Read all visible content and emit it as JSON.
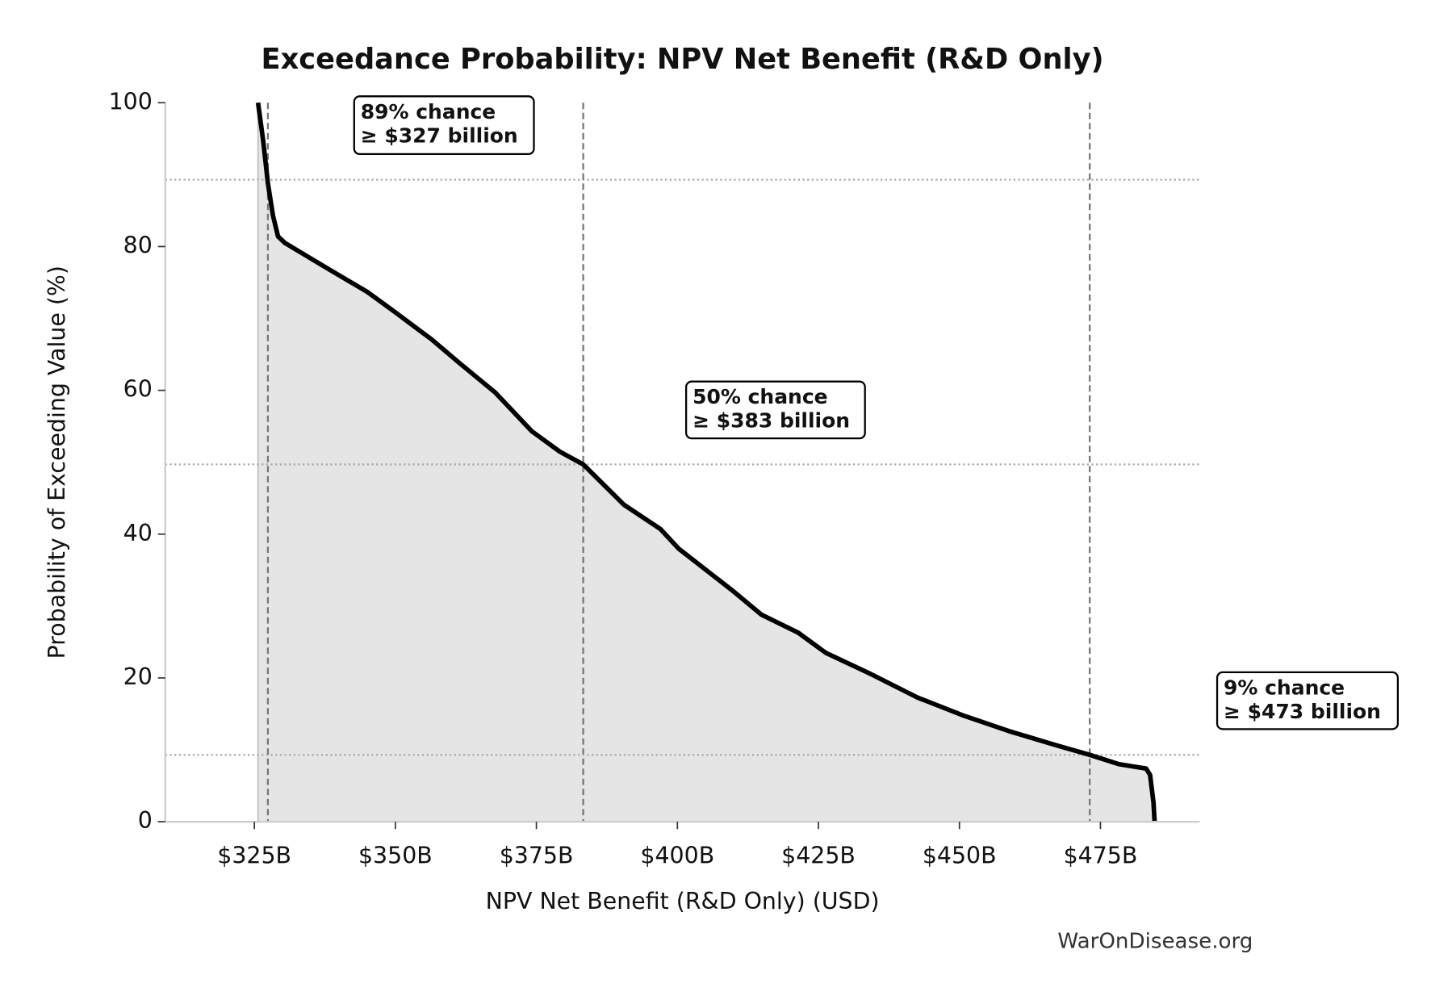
{
  "chart_data": {
    "type": "line",
    "title": "Exceedance Probability: NPV Net Benefit (R&D Only)",
    "xlabel": "NPV Net Benefit (R&D Only) (USD)",
    "ylabel": "Probability of Exceeding Value (%)",
    "source": "WarOnDisease.org",
    "color": "#000000",
    "fill_color": "#e5e5e5",
    "x": [
      325.65,
      326.6,
      327.4,
      328.3,
      329.2,
      330.4,
      333.6,
      338.5,
      345,
      349.9,
      356.4,
      361.2,
      367.7,
      374.2,
      379.1,
      383.3,
      390.5,
      397,
      400.2,
      410,
      414.9,
      421.4,
      426.3,
      434.4,
      442.5,
      450.6,
      458.8,
      466.9,
      473.1,
      478.3,
      483.1,
      483.8,
      484.4,
      484.6
    ],
    "values": [
      100,
      94.5,
      88.8,
      84.3,
      81.4,
      80.5,
      79,
      76.7,
      73.7,
      70.9,
      67.1,
      63.9,
      59.7,
      54.3,
      51.5,
      49.7,
      44.1,
      40.7,
      38,
      32,
      28.8,
      26.3,
      23.5,
      20.5,
      17.3,
      14.8,
      12.6,
      10.7,
      9.3,
      8.0,
      7.4,
      6.5,
      2.7,
      0
    ],
    "xlim": [
      309.2,
      492.6
    ],
    "ylim": [
      0,
      100
    ],
    "xticks": [
      {
        "value": 325,
        "label": "$325B"
      },
      {
        "value": 350,
        "label": "$350B"
      },
      {
        "value": 375,
        "label": "$375B"
      },
      {
        "value": 400,
        "label": "$400B"
      },
      {
        "value": 425,
        "label": "$425B"
      },
      {
        "value": 450,
        "label": "$450B"
      },
      {
        "value": 475,
        "label": "$475B"
      }
    ],
    "yticks": [
      0,
      20,
      40,
      60,
      80,
      100
    ],
    "annotations": [
      {
        "x": 327.4,
        "y": 89.3,
        "lines": [
          "89% chance",
          "≥ $327 billion"
        ]
      },
      {
        "x": 383.3,
        "y": 49.7,
        "lines": [
          "50% chance",
          "≥ $383 billion"
        ]
      },
      {
        "x": 473.1,
        "y": 9.3,
        "lines": [
          "9% chance",
          "≥ $473 billion"
        ]
      }
    ]
  }
}
